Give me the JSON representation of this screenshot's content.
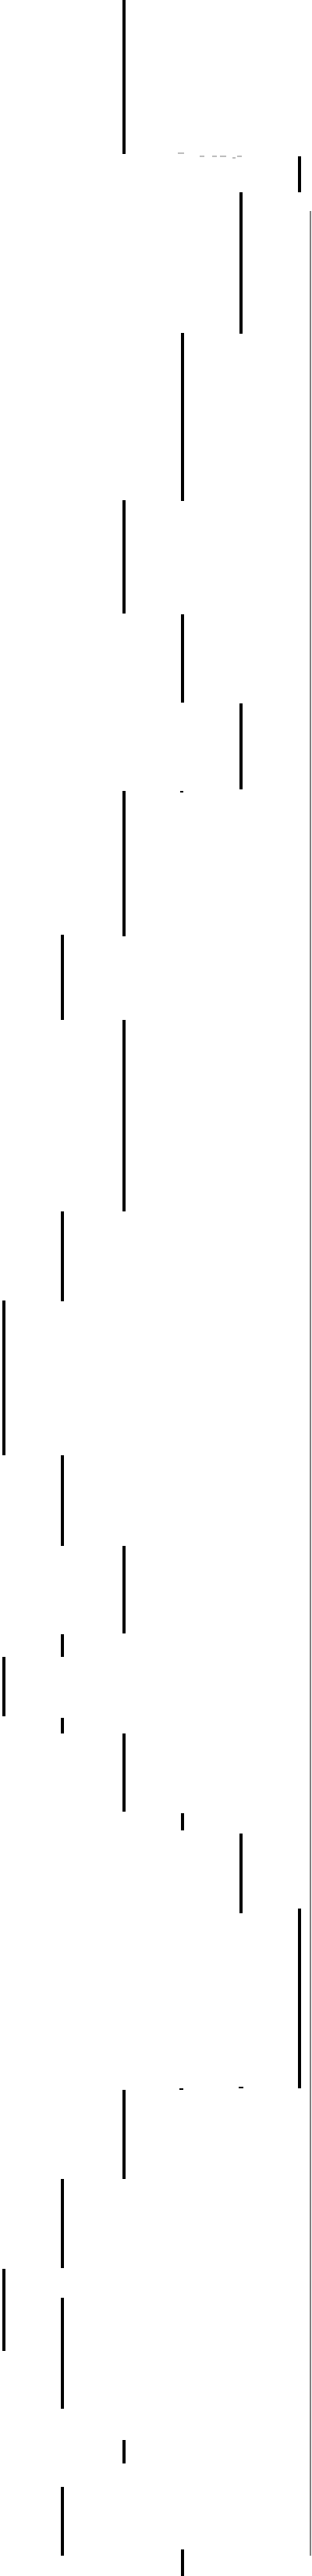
{
  "page": {
    "background": "#ffffff",
    "stroke_color": "#000000",
    "faint_color": "#c8c8c8"
  },
  "top_label": ""
}
